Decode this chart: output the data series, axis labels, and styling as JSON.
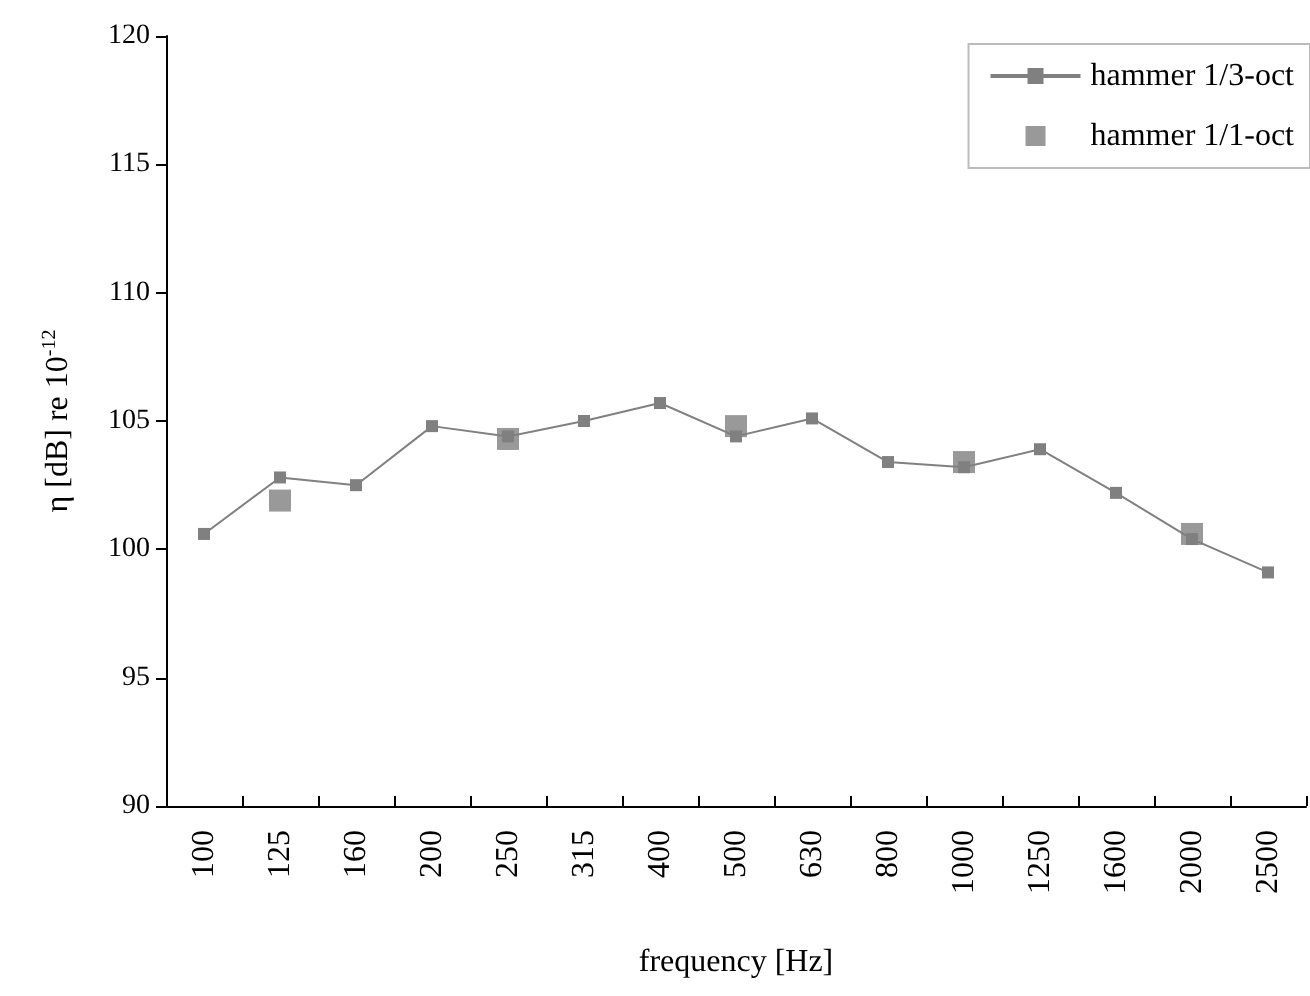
{
  "chart_data": {
    "type": "line",
    "xlabel": "frequency [Hz]",
    "ylabel": "η [dB] re 10$^{-12}$",
    "categories": [
      "100",
      "125",
      "160",
      "200",
      "250",
      "315",
      "400",
      "500",
      "630",
      "800",
      "1000",
      "1250",
      "1600",
      "2000",
      "2500"
    ],
    "series": [
      {
        "name": "hammer 1/3-oct",
        "color": "#808080",
        "marker": "square",
        "values": [
          100.6,
          102.8,
          102.5,
          104.8,
          104.4,
          105.0,
          105.7,
          104.4,
          105.1,
          103.4,
          103.2,
          103.9,
          102.2,
          100.4,
          99.1
        ]
      },
      {
        "name": "hammer 1/1-oct",
        "color": "#808080",
        "type": "scatter",
        "marker": "square",
        "values": [
          null,
          101.9,
          null,
          null,
          104.3,
          null,
          null,
          104.8,
          null,
          null,
          103.4,
          null,
          null,
          100.6,
          null
        ]
      }
    ],
    "ylim": [
      90,
      120
    ],
    "yticks": [
      90,
      95,
      100,
      105,
      110,
      115,
      120
    ],
    "grid": false,
    "legend": "top right",
    "line_style": "solid"
  }
}
